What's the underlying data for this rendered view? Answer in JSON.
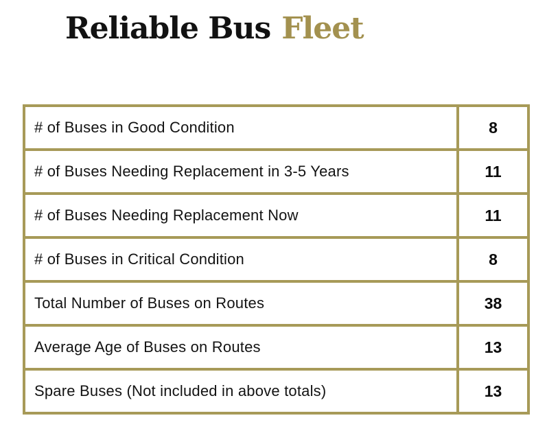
{
  "header": {
    "brand": "Reliable Bus",
    "brand_accent": "Fleet"
  },
  "colors": {
    "accent_gold": "#a3914f",
    "table_border_gold": "#a79a58",
    "text": "#131313"
  },
  "table": {
    "rows": [
      {
        "label": "# of Buses in Good Condition",
        "value": "8"
      },
      {
        "label": "# of Buses Needing Replacement in 3-5 Years",
        "value": "11"
      },
      {
        "label": "# of Buses Needing Replacement Now",
        "value": "11"
      },
      {
        "label": "# of Buses in Critical Condition",
        "value": "8"
      },
      {
        "label": "Total Number of Buses on Routes",
        "value": "38"
      },
      {
        "label": "Average Age of Buses on Routes",
        "value": "13"
      },
      {
        "label": "Spare Buses (Not included in above totals)",
        "value": "13"
      }
    ]
  }
}
